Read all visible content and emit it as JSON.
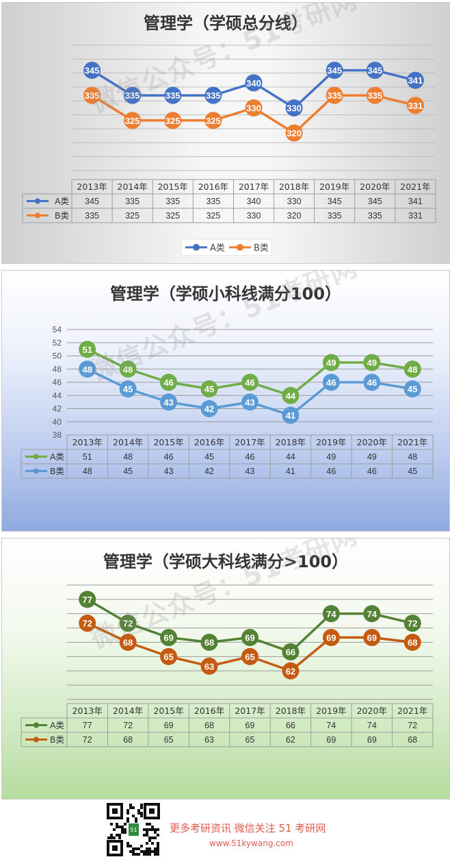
{
  "chart_data": [
    {
      "type": "line",
      "title": "管理学（学硕总分线）",
      "categories": [
        "2013年",
        "2014年",
        "2015年",
        "2016年",
        "2017年",
        "2018年",
        "2019年",
        "2020年",
        "2021年"
      ],
      "series": [
        {
          "name": "A类",
          "values": [
            345,
            335,
            335,
            335,
            340,
            330,
            345,
            345,
            341
          ],
          "color": "#4472c4"
        },
        {
          "name": "B类",
          "values": [
            335,
            325,
            325,
            325,
            330,
            320,
            335,
            335,
            331
          ],
          "color": "#ed7d31"
        }
      ],
      "ylim": [
        305,
        355
      ],
      "show_y_ticks": false,
      "legend": "bottom",
      "data_table": true
    },
    {
      "type": "line",
      "title": "管理学（学硕小科线满分100）",
      "categories": [
        "2013年",
        "2014年",
        "2015年",
        "2016年",
        "2017年",
        "2018年",
        "2019年",
        "2020年",
        "2021年"
      ],
      "series": [
        {
          "name": "A类",
          "values": [
            51,
            48,
            46,
            45,
            46,
            44,
            49,
            49,
            48
          ],
          "color": "#70ad47"
        },
        {
          "name": "B类",
          "values": [
            48,
            45,
            43,
            42,
            43,
            41,
            46,
            46,
            45
          ],
          "color": "#5b9bd5"
        }
      ],
      "ylim": [
        38,
        54
      ],
      "yticks": [
        "54",
        "52",
        "50",
        "48",
        "46",
        "44",
        "42",
        "40",
        "38"
      ],
      "show_y_ticks": true,
      "data_table": true
    },
    {
      "type": "line",
      "title": "管理学（学硕大科线满分>100）",
      "categories": [
        "2013年",
        "2014年",
        "2015年",
        "2016年",
        "2017年",
        "2018年",
        "2019年",
        "2020年",
        "2021年"
      ],
      "series": [
        {
          "name": "A类",
          "values": [
            77,
            72,
            69,
            68,
            69,
            66,
            74,
            74,
            72
          ],
          "color": "#548235"
        },
        {
          "name": "B类",
          "values": [
            72,
            68,
            65,
            63,
            65,
            62,
            69,
            69,
            68
          ],
          "color": "#c55a11"
        }
      ],
      "ylim": [
        56,
        80
      ],
      "show_y_ticks": false,
      "data_table": true
    }
  ],
  "watermark": "微信公众号：51考研网",
  "footer": {
    "line1": "更多考研资讯 微信关注 51 考研网",
    "line2": "www.51kywang.com"
  }
}
